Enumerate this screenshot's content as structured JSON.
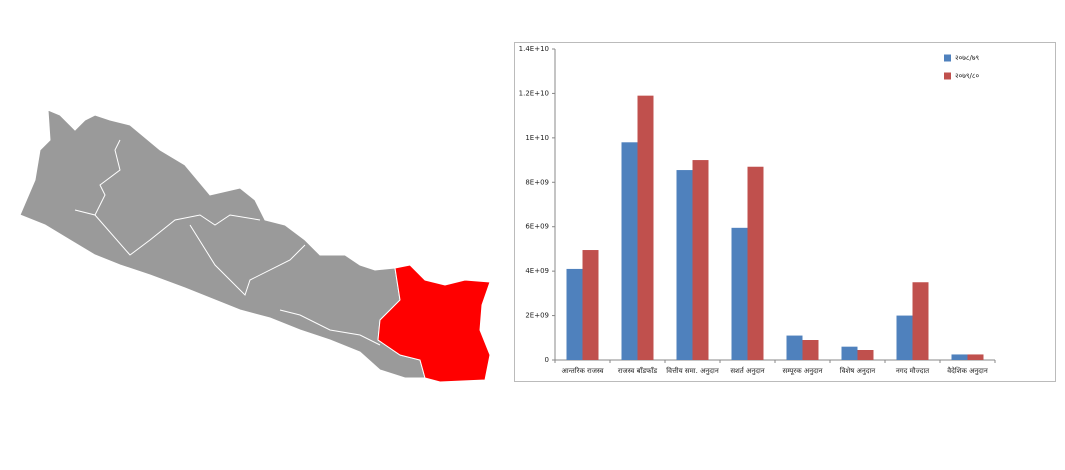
{
  "chart_data": {
    "type": "bar",
    "categories": [
      "आन्तरिक राजस्व",
      "राजस्व बाँडफाँड",
      "वित्तीय समा. अनुदान",
      "सशर्त अनुदान",
      "सम्पूरक अनुदान",
      "विशेष अनुदान",
      "नगद मौज्दात",
      "वैदेशिक अनुदान"
    ],
    "series": [
      {
        "name": "२०७८/७९",
        "color": "#4f81bd",
        "values": [
          4100000000,
          9800000000,
          8550000000,
          5950000000,
          1100000000,
          600000000,
          2000000000,
          250000000
        ]
      },
      {
        "name": "२०७९/८०",
        "color": "#c0504d",
        "values": [
          4950000000,
          11900000000,
          9000000000,
          8700000000,
          900000000,
          450000000,
          3500000000,
          250000000
        ]
      }
    ],
    "ylim": [
      0,
      14000000000
    ],
    "yticks": [
      0,
      {
        "value": 2000000000,
        "label": "2E+09"
      },
      {
        "value": 4000000000,
        "label": "4E+09"
      },
      {
        "value": 6000000000,
        "label": "6E+09"
      },
      {
        "value": 8000000000,
        "label": "8E+09"
      },
      {
        "value": 10000000000,
        "label": "1E+10"
      },
      {
        "value": 12000000000,
        "label": "1.2E+10"
      },
      {
        "value": 14000000000,
        "label": "1.4E+10"
      }
    ],
    "grid": false,
    "legend": "top-right"
  }
}
